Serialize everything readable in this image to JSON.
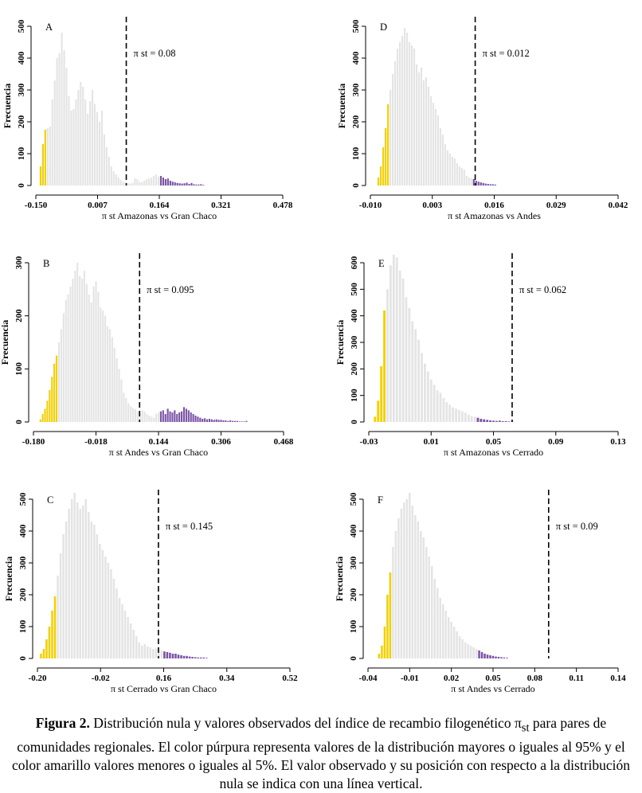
{
  "colors": {
    "neutral": "#e4e4e4",
    "lower": "#f5cf00",
    "upper": "#7a52a8",
    "axis": "#000000"
  },
  "caption": {
    "label": "Figura 2.",
    "text_before": "Distribución nula y valores observados del índice de recambio filogenético π",
    "subscript": "st",
    "text_after": " para pares de comunidades regionales. El color púrpura representa valores de la distribución mayores o iguales al 95% y el color amarillo valores menores o iguales al 5%. El valor observado y su posición con respecto a la distribución nula se indica con una línea vertical."
  },
  "chart_data": [
    {
      "type": "bar",
      "panel": "A",
      "xlabel": "π st Amazonas vs Gran Chaco",
      "ylabel": "Frecuencia",
      "xlim": [
        -0.15,
        0.478
      ],
      "ylim": [
        0,
        500
      ],
      "xticks": [
        "-0.150",
        "0.007",
        "0.164",
        "0.321",
        "0.478"
      ],
      "yticks": [
        "0",
        "100",
        "200",
        "300",
        "400",
        "500"
      ],
      "observed": 0.08,
      "observed_label": "π st = 0.08",
      "bin_start": -0.138,
      "bin_width": 0.006,
      "lower_count": 3,
      "upper_from": 0.162,
      "counts": [
        60,
        130,
        175,
        180,
        185,
        270,
        330,
        400,
        415,
        480,
        425,
        370,
        280,
        235,
        240,
        270,
        300,
        325,
        310,
        270,
        225,
        265,
        300,
        255,
        230,
        200,
        235,
        160,
        120,
        90,
        60,
        45,
        35,
        25,
        18,
        12,
        10,
        8,
        6,
        8,
        22,
        20,
        12,
        10,
        15,
        20,
        22,
        25,
        30,
        35,
        28,
        30,
        25,
        20,
        22,
        15,
        12,
        10,
        8,
        7,
        6,
        7,
        9,
        5,
        8,
        4,
        3,
        3,
        4,
        2
      ]
    },
    {
      "type": "bar",
      "panel": "D",
      "xlabel": "π st Amazonas vs Andes",
      "ylabel": "Frecuencia",
      "xlim": [
        -0.01,
        0.042
      ],
      "ylim": [
        0,
        500
      ],
      "xticks": [
        "-0.010",
        "0.003",
        "0.016",
        "0.029",
        "0.042"
      ],
      "yticks": [
        "0",
        "100",
        "200",
        "300",
        "400",
        "500"
      ],
      "observed": 0.012,
      "observed_label": "π st = 0.012",
      "bin_start": -0.0083,
      "bin_width": 0.0005,
      "lower_count": 5,
      "upper_from": 0.0115,
      "counts": [
        25,
        60,
        120,
        180,
        255,
        300,
        350,
        390,
        430,
        450,
        470,
        495,
        480,
        450,
        440,
        430,
        380,
        355,
        370,
        330,
        340,
        310,
        280,
        260,
        240,
        220,
        180,
        160,
        130,
        110,
        100,
        90,
        85,
        70,
        60,
        55,
        50,
        30,
        25,
        22,
        20,
        15,
        12,
        10,
        8,
        6,
        5,
        4,
        4,
        3
      ]
    },
    {
      "type": "bar",
      "panel": "B",
      "xlabel": "π st Andes vs Gran Chaco",
      "ylabel": "Frecuencia",
      "xlim": [
        -0.18,
        0.468
      ],
      "ylim": [
        0,
        300
      ],
      "xticks": [
        "-0.180",
        "-0.018",
        "0.144",
        "0.306",
        "0.468"
      ],
      "yticks": [
        "0",
        "100",
        "200",
        "300"
      ],
      "observed": 0.095,
      "observed_label": "π st = 0.095",
      "bin_start": -0.162,
      "bin_width": 0.006,
      "lower_count": 8,
      "upper_from": 0.15,
      "counts": [
        5,
        15,
        25,
        40,
        60,
        85,
        110,
        125,
        150,
        175,
        205,
        230,
        240,
        255,
        270,
        285,
        300,
        275,
        270,
        285,
        260,
        240,
        225,
        255,
        265,
        245,
        215,
        210,
        200,
        180,
        175,
        160,
        140,
        120,
        100,
        80,
        55,
        45,
        35,
        30,
        26,
        24,
        20,
        18,
        22,
        20,
        15,
        12,
        10,
        8,
        15,
        18,
        20,
        22,
        15,
        25,
        20,
        18,
        22,
        15,
        18,
        20,
        28,
        25,
        22,
        18,
        15,
        12,
        10,
        8,
        6,
        7,
        5,
        6,
        5,
        4,
        5,
        4,
        4,
        3,
        3,
        2,
        3,
        2,
        2,
        2,
        1,
        1,
        1,
        2
      ]
    },
    {
      "type": "bar",
      "panel": "E",
      "xlabel": "π st Amazonas vs Cerrado",
      "ylabel": "Frecuencia",
      "xlim": [
        -0.03,
        0.13
      ],
      "ylim": [
        0,
        600
      ],
      "xticks": [
        "-0.03",
        "0.01",
        "0.05",
        "0.09",
        "0.13"
      ],
      "yticks": [
        "0",
        "100",
        "200",
        "300",
        "400",
        "500",
        "600"
      ],
      "observed": 0.062,
      "observed_label": "π st = 0.062",
      "bin_start": -0.026,
      "bin_width": 0.002,
      "lower_count": 4,
      "upper_from": 0.04,
      "counts": [
        20,
        80,
        210,
        420,
        500,
        590,
        630,
        620,
        570,
        540,
        470,
        430,
        380,
        350,
        310,
        260,
        220,
        190,
        160,
        140,
        120,
        110,
        90,
        75,
        65,
        55,
        50,
        45,
        40,
        35,
        28,
        22,
        20,
        16,
        12,
        10,
        8,
        6,
        5,
        4,
        5,
        3,
        3,
        2,
        2
      ]
    },
    {
      "type": "bar",
      "panel": "C",
      "xlabel": "π st Cerrado vs Gran Chaco",
      "ylabel": "Frecuencia",
      "xlim": [
        -0.2,
        0.52
      ],
      "ylim": [
        0,
        500
      ],
      "xticks": [
        "-0.20",
        "-0.02",
        "0.16",
        "0.34",
        "0.52"
      ],
      "yticks": [
        "0",
        "100",
        "200",
        "300",
        "400",
        "500"
      ],
      "observed": 0.145,
      "observed_label": "π st = 0.145",
      "bin_start": -0.19,
      "bin_width": 0.008,
      "lower_count": 6,
      "upper_from": 0.16,
      "counts": [
        15,
        30,
        60,
        100,
        150,
        195,
        260,
        330,
        390,
        430,
        470,
        500,
        520,
        490,
        470,
        480,
        500,
        460,
        430,
        420,
        390,
        360,
        340,
        320,
        300,
        280,
        250,
        220,
        190,
        170,
        150,
        130,
        110,
        90,
        70,
        50,
        40,
        45,
        38,
        35,
        30,
        32,
        28,
        25,
        22,
        20,
        18,
        15,
        15,
        12,
        10,
        8,
        8,
        6,
        5,
        4,
        3,
        3,
        3,
        2
      ]
    },
    {
      "type": "bar",
      "panel": "F",
      "xlabel": "π st Andes vs Cerrado",
      "ylabel": "Frecuencia",
      "xlim": [
        -0.04,
        0.14
      ],
      "ylim": [
        0,
        500
      ],
      "xticks": [
        "-0.04",
        "-0.01",
        "0.02",
        "0.05",
        "0.08",
        "0.11",
        "0.14"
      ],
      "yticks": [
        "0",
        "100",
        "200",
        "300",
        "400",
        "500"
      ],
      "observed": 0.09,
      "observed_label": "π st = 0.09",
      "bin_start": -0.032,
      "bin_width": 0.002,
      "lower_count": 5,
      "upper_from": 0.04,
      "counts": [
        15,
        40,
        100,
        200,
        270,
        350,
        400,
        440,
        470,
        490,
        500,
        520,
        480,
        450,
        430,
        400,
        380,
        350,
        320,
        290,
        250,
        220,
        190,
        170,
        150,
        130,
        115,
        100,
        85,
        70,
        60,
        50,
        45,
        40,
        35,
        30,
        25,
        20,
        15,
        12,
        10,
        8,
        6,
        5,
        4,
        3,
        2
      ]
    }
  ]
}
